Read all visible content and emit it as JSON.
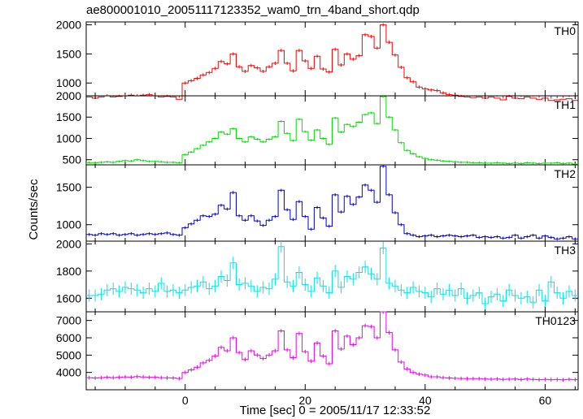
{
  "title": "ae800001010_20051117123352_wam0_trn_4band_short.qdp",
  "xlabel": "Time [sec] 0 = 2005/11/17 12:33:52",
  "ylabel": "Counts/sec",
  "chart_data": {
    "type": "line",
    "title": "ae800001010_20051117123352_wam0_trn_4band_short.qdp",
    "xlabel": "Time [sec] 0 = 2005/11/17 12:33:52",
    "ylabel": "Counts/sec",
    "xlim": [
      -16.5,
      65.5
    ],
    "x_ticks": [
      0,
      20,
      40,
      60
    ],
    "x": [
      -16,
      -15,
      -14,
      -13,
      -12,
      -11,
      -10,
      -9,
      -8,
      -7,
      -6,
      -5,
      -4,
      -3,
      -2,
      -1,
      0,
      1,
      2,
      3,
      4,
      5,
      6,
      7,
      8,
      9,
      10,
      11,
      12,
      13,
      14,
      15,
      16,
      17,
      18,
      19,
      20,
      21,
      22,
      23,
      24,
      25,
      26,
      27,
      28,
      29,
      30,
      31,
      32,
      33,
      34,
      35,
      36,
      37,
      38,
      39,
      40,
      41,
      42,
      43,
      44,
      45,
      46,
      47,
      48,
      49,
      50,
      51,
      52,
      53,
      54,
      55,
      56,
      57,
      58,
      59,
      60,
      61,
      62,
      63,
      64,
      65
    ],
    "series": [
      {
        "name": "TH0",
        "color": "#ff0000",
        "ylim": [
          780,
          2050
        ],
        "y_ticks": [
          1000,
          1500,
          2000
        ],
        "error": 28,
        "values": [
          760,
          740,
          760,
          780,
          760,
          770,
          780,
          790,
          780,
          790,
          800,
          780,
          760,
          770,
          760,
          720,
          1000,
          1040,
          1080,
          1140,
          1180,
          1250,
          1370,
          1330,
          1500,
          1280,
          1200,
          1300,
          1260,
          1200,
          1280,
          1340,
          1560,
          1340,
          1210,
          1560,
          1380,
          1250,
          1460,
          1240,
          1190,
          1580,
          1310,
          1500,
          1410,
          1470,
          1830,
          1800,
          1600,
          2000,
          1700,
          1480,
          1270,
          1090,
          1020,
          930,
          900,
          880,
          870,
          830,
          800,
          790,
          770,
          760,
          750,
          760,
          740,
          760,
          740,
          710,
          770,
          740,
          730,
          760,
          740,
          720,
          740,
          700,
          710,
          720,
          730,
          700
        ]
      },
      {
        "name": "TH1",
        "color": "#00e000",
        "ylim": [
          380,
          2000
        ],
        "y_ticks": [
          500,
          1000,
          1500,
          2000
        ],
        "error": 25,
        "values": [
          430,
          430,
          440,
          450,
          440,
          460,
          480,
          470,
          500,
          480,
          460,
          460,
          450,
          440,
          440,
          430,
          620,
          680,
          760,
          840,
          920,
          1000,
          1150,
          1100,
          1230,
          1000,
          920,
          1040,
          980,
          920,
          980,
          1040,
          1400,
          1120,
          950,
          1450,
          1160,
          960,
          1200,
          1000,
          860,
          1480,
          1150,
          1330,
          1280,
          1380,
          1560,
          1600,
          1350,
          1980,
          1500,
          1200,
          900,
          720,
          640,
          570,
          530,
          500,
          490,
          470,
          460,
          450,
          440,
          440,
          430,
          430,
          420,
          420,
          430,
          420,
          410,
          420,
          410,
          430,
          420,
          410,
          420,
          420,
          430,
          410,
          420,
          400
        ]
      },
      {
        "name": "TH2",
        "color": "#0000dd",
        "ylim": [
          780,
          1800
        ],
        "y_ticks": [
          1000,
          1500
        ],
        "error": 20,
        "values": [
          870,
          860,
          880,
          870,
          880,
          860,
          870,
          880,
          860,
          870,
          880,
          870,
          880,
          890,
          870,
          860,
          960,
          1010,
          1060,
          1120,
          1110,
          1140,
          1260,
          1210,
          1430,
          1120,
          1060,
          1120,
          1050,
          990,
          1060,
          1110,
          1460,
          1200,
          1070,
          1310,
          1110,
          940,
          1230,
          1090,
          980,
          1400,
          1170,
          1380,
          1270,
          1370,
          1530,
          1460,
          1300,
          1780,
          1400,
          1160,
          1000,
          880,
          860,
          840,
          850,
          860,
          840,
          850,
          860,
          850,
          840,
          850,
          860,
          830,
          840,
          830,
          840,
          820,
          830,
          860,
          820,
          840,
          860,
          820,
          850,
          830,
          810,
          820,
          840,
          810
        ]
      },
      {
        "name": "TH3",
        "color": "#00e5ee",
        "ylim": [
          1500,
          2020
        ],
        "y_ticks": [
          1600,
          1800,
          2000
        ],
        "error": 45,
        "values": [
          1620,
          1620,
          1630,
          1660,
          1670,
          1650,
          1680,
          1670,
          1660,
          1640,
          1670,
          1650,
          1710,
          1650,
          1660,
          1640,
          1660,
          1680,
          1690,
          1720,
          1670,
          1690,
          1760,
          1730,
          1860,
          1700,
          1710,
          1690,
          1650,
          1680,
          1670,
          1740,
          1980,
          1720,
          1690,
          1790,
          1700,
          1650,
          1750,
          1690,
          1640,
          1800,
          1680,
          1760,
          1740,
          1790,
          1830,
          1780,
          1740,
          1970,
          1710,
          1690,
          1660,
          1640,
          1680,
          1650,
          1640,
          1610,
          1670,
          1630,
          1660,
          1620,
          1670,
          1600,
          1620,
          1640,
          1560,
          1610,
          1630,
          1580,
          1660,
          1620,
          1600,
          1610,
          1570,
          1660,
          1580,
          1720,
          1640,
          1600,
          1650,
          1620
        ]
      },
      {
        "name": "TH0123",
        "color": "#ee00ee",
        "ylim": [
          3000,
          7500
        ],
        "y_ticks": [
          4000,
          5000,
          6000,
          7000
        ],
        "error": 110,
        "values": [
          3700,
          3680,
          3700,
          3720,
          3700,
          3720,
          3740,
          3730,
          3760,
          3740,
          3720,
          3720,
          3700,
          3690,
          3680,
          3650,
          4000,
          4150,
          4300,
          4550,
          4700,
          4950,
          5450,
          5250,
          6000,
          5150,
          4750,
          5250,
          5000,
          4800,
          5000,
          5250,
          6400,
          5300,
          4850,
          6250,
          5200,
          4650,
          5700,
          4950,
          4500,
          6400,
          5350,
          6100,
          5600,
          6000,
          6700,
          6650,
          6000,
          7500,
          6300,
          5300,
          4600,
          4200,
          4000,
          3900,
          3850,
          3750,
          3750,
          3700,
          3680,
          3660,
          3650,
          3640,
          3640,
          3640,
          3620,
          3610,
          3620,
          3600,
          3610,
          3620,
          3590,
          3620,
          3600,
          3580,
          3600,
          3580,
          3590,
          3570,
          3600,
          3580
        ]
      }
    ]
  }
}
